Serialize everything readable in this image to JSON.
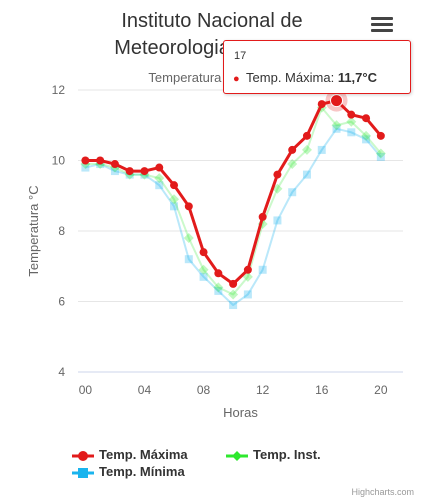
{
  "chart": {
    "title_line1": "Instituto Nacional de",
    "title_line2": "Meteorologia - INMET",
    "subtitle": "Temperatura por Hora",
    "credits": "Highcharts.com"
  },
  "tooltip": {
    "x": "17",
    "series": "Temp. Máxima",
    "value": "11,7°C"
  },
  "colors": {
    "max": "#e21b1b",
    "inst": "#2ee82e",
    "min": "#1ab4ee"
  },
  "chart_data": {
    "type": "line",
    "xlabel": "Horas",
    "ylabel": "Temperatura °C",
    "xlim": [
      -0.5,
      21.5
    ],
    "ylim": [
      4,
      12
    ],
    "x_ticks": [
      "00",
      "04",
      "08",
      "12",
      "16",
      "20"
    ],
    "y_ticks": [
      "4",
      "6",
      "8",
      "10",
      "12"
    ],
    "legend_position": "bottom",
    "x": [
      0,
      1,
      2,
      3,
      4,
      5,
      6,
      7,
      8,
      9,
      10,
      11,
      12,
      13,
      14,
      15,
      16,
      17,
      18,
      19,
      20
    ],
    "series": [
      {
        "name": "Temp. Máxima",
        "values": [
          10.0,
          10.0,
          9.9,
          9.7,
          9.7,
          9.8,
          9.3,
          8.7,
          7.4,
          6.8,
          6.5,
          6.9,
          8.4,
          9.6,
          10.3,
          10.7,
          11.6,
          11.7,
          11.3,
          11.2,
          10.7
        ]
      },
      {
        "name": "Temp. Inst.",
        "values": [
          9.9,
          9.9,
          9.8,
          9.6,
          9.6,
          9.5,
          8.9,
          7.8,
          6.9,
          6.4,
          6.2,
          6.7,
          8.2,
          9.2,
          9.9,
          10.3,
          11.5,
          11.0,
          11.1,
          10.7,
          10.2
        ]
      },
      {
        "name": "Temp. Mínima",
        "values": [
          9.8,
          9.9,
          9.7,
          9.6,
          9.6,
          9.3,
          8.7,
          7.2,
          6.7,
          6.3,
          5.9,
          6.2,
          6.9,
          8.3,
          9.1,
          9.6,
          10.3,
          10.9,
          10.8,
          10.6,
          10.1
        ]
      }
    ]
  },
  "legend": {
    "max": "Temp. Máxima",
    "inst": "Temp. Inst.",
    "min": "Temp. Mínima"
  }
}
